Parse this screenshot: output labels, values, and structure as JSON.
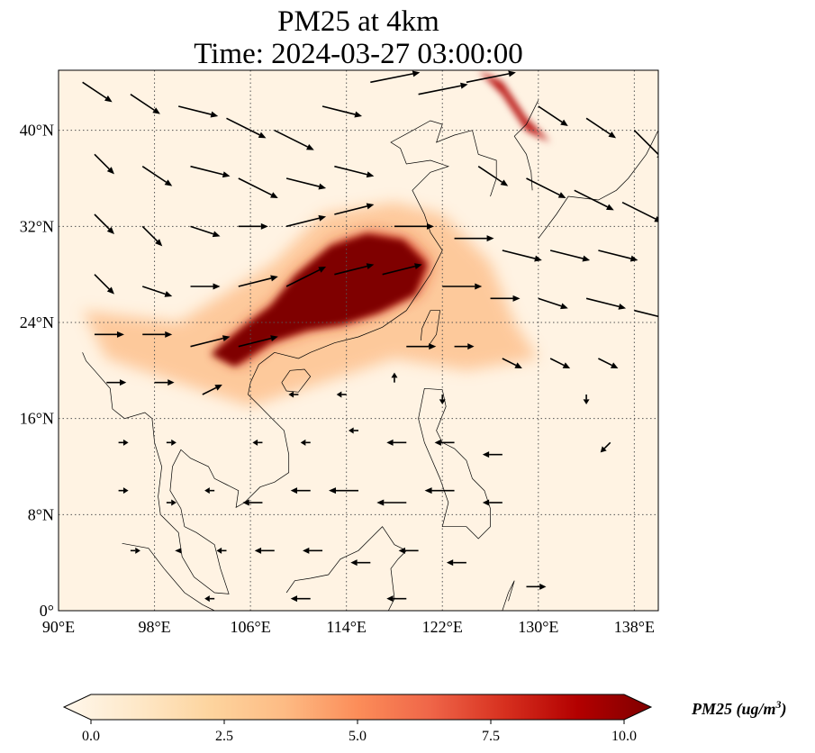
{
  "title": {
    "line1": "PM25 at 4km",
    "line2": "Time: 2024-03-27 03:00:00"
  },
  "map": {
    "projection": "PlateCarree",
    "lon_range": [
      90,
      140
    ],
    "lat_range": [
      0,
      45
    ],
    "lat_ticks": [
      {
        "value": 0,
        "label": "0°"
      },
      {
        "value": 8,
        "label": "8°N"
      },
      {
        "value": 16,
        "label": "16°N"
      },
      {
        "value": 24,
        "label": "24°N"
      },
      {
        "value": 32,
        "label": "32°N"
      },
      {
        "value": 40,
        "label": "40°N"
      }
    ],
    "lon_ticks": [
      {
        "value": 90,
        "label": "90°E"
      },
      {
        "value": 98,
        "label": "98°E"
      },
      {
        "value": 106,
        "label": "106°E"
      },
      {
        "value": 114,
        "label": "114°E"
      },
      {
        "value": 122,
        "label": "122°E"
      },
      {
        "value": 130,
        "label": "130°E"
      },
      {
        "value": 138,
        "label": "138°E"
      }
    ],
    "gridlines": "dotted",
    "plume_core": [
      [
        103,
        21.5
      ],
      [
        106,
        24
      ],
      [
        108,
        25.5
      ],
      [
        110,
        28
      ],
      [
        113,
        30.5
      ],
      [
        116,
        31.5
      ],
      [
        119,
        31
      ],
      [
        121,
        29
      ],
      [
        120,
        26.5
      ],
      [
        117,
        25
      ],
      [
        114,
        24
      ],
      [
        111,
        23.5
      ],
      [
        108,
        22.5
      ],
      [
        105,
        20.5
      ]
    ],
    "plume_halo": [
      [
        92,
        25
      ],
      [
        100,
        24
      ],
      [
        108,
        29
      ],
      [
        112,
        33
      ],
      [
        118,
        34
      ],
      [
        122,
        33
      ],
      [
        126,
        29
      ],
      [
        128,
        24
      ],
      [
        130,
        21
      ],
      [
        124,
        20
      ],
      [
        118,
        21
      ],
      [
        112,
        19
      ],
      [
        106,
        17
      ],
      [
        100,
        19
      ],
      [
        94,
        21
      ]
    ],
    "plume_north": [
      [
        125,
        45
      ],
      [
        127,
        43
      ],
      [
        129,
        40
      ],
      [
        131,
        39
      ],
      [
        129,
        41
      ],
      [
        127,
        44
      ]
    ],
    "wind_vectors": [
      {
        "lon": 92,
        "lat": 44,
        "u": 3,
        "v": -2
      },
      {
        "lon": 96,
        "lat": 43,
        "u": 3,
        "v": -2
      },
      {
        "lon": 100,
        "lat": 42,
        "u": 4,
        "v": -1
      },
      {
        "lon": 104,
        "lat": 41,
        "u": 4,
        "v": -2
      },
      {
        "lon": 108,
        "lat": 40,
        "u": 4,
        "v": -2
      },
      {
        "lon": 112,
        "lat": 42,
        "u": 4,
        "v": -1
      },
      {
        "lon": 116,
        "lat": 44,
        "u": 5,
        "v": 1
      },
      {
        "lon": 120,
        "lat": 43,
        "u": 5,
        "v": 1
      },
      {
        "lon": 124,
        "lat": 44,
        "u": 5,
        "v": 1
      },
      {
        "lon": 130,
        "lat": 42,
        "u": 3,
        "v": -2
      },
      {
        "lon": 134,
        "lat": 41,
        "u": 3,
        "v": -2
      },
      {
        "lon": 138,
        "lat": 40,
        "u": 3,
        "v": -3
      },
      {
        "lon": 93,
        "lat": 38,
        "u": 2,
        "v": -2
      },
      {
        "lon": 97,
        "lat": 37,
        "u": 3,
        "v": -2
      },
      {
        "lon": 101,
        "lat": 37,
        "u": 4,
        "v": -1
      },
      {
        "lon": 105,
        "lat": 36,
        "u": 4,
        "v": -2
      },
      {
        "lon": 109,
        "lat": 36,
        "u": 4,
        "v": -1
      },
      {
        "lon": 113,
        "lat": 37,
        "u": 4,
        "v": -1
      },
      {
        "lon": 125,
        "lat": 37,
        "u": 3,
        "v": -2
      },
      {
        "lon": 129,
        "lat": 36,
        "u": 4,
        "v": -2
      },
      {
        "lon": 133,
        "lat": 35,
        "u": 4,
        "v": -2
      },
      {
        "lon": 137,
        "lat": 34,
        "u": 4,
        "v": -2
      },
      {
        "lon": 93,
        "lat": 33,
        "u": 2,
        "v": -2
      },
      {
        "lon": 97,
        "lat": 32,
        "u": 2,
        "v": -2
      },
      {
        "lon": 101,
        "lat": 32,
        "u": 3,
        "v": -1
      },
      {
        "lon": 105,
        "lat": 32,
        "u": 3,
        "v": 0
      },
      {
        "lon": 109,
        "lat": 32,
        "u": 4,
        "v": 1
      },
      {
        "lon": 113,
        "lat": 33,
        "u": 4,
        "v": 1
      },
      {
        "lon": 118,
        "lat": 32,
        "u": 4,
        "v": 0
      },
      {
        "lon": 123,
        "lat": 31,
        "u": 4,
        "v": 0
      },
      {
        "lon": 127,
        "lat": 30,
        "u": 4,
        "v": -1
      },
      {
        "lon": 131,
        "lat": 30,
        "u": 4,
        "v": -1
      },
      {
        "lon": 135,
        "lat": 30,
        "u": 4,
        "v": -1
      },
      {
        "lon": 93,
        "lat": 28,
        "u": 2,
        "v": -2
      },
      {
        "lon": 97,
        "lat": 27,
        "u": 3,
        "v": -1
      },
      {
        "lon": 101,
        "lat": 27,
        "u": 3,
        "v": 0
      },
      {
        "lon": 105,
        "lat": 27,
        "u": 4,
        "v": 1
      },
      {
        "lon": 109,
        "lat": 27,
        "u": 4,
        "v": 2
      },
      {
        "lon": 113,
        "lat": 28,
        "u": 4,
        "v": 1
      },
      {
        "lon": 117,
        "lat": 28,
        "u": 4,
        "v": 1
      },
      {
        "lon": 122,
        "lat": 27,
        "u": 4,
        "v": 0
      },
      {
        "lon": 126,
        "lat": 26,
        "u": 3,
        "v": 0
      },
      {
        "lon": 130,
        "lat": 26,
        "u": 3,
        "v": -1
      },
      {
        "lon": 134,
        "lat": 26,
        "u": 4,
        "v": -1
      },
      {
        "lon": 138,
        "lat": 25,
        "u": 4,
        "v": -1
      },
      {
        "lon": 93,
        "lat": 23,
        "u": 3,
        "v": 0
      },
      {
        "lon": 97,
        "lat": 23,
        "u": 3,
        "v": 0
      },
      {
        "lon": 101,
        "lat": 22,
        "u": 4,
        "v": 1
      },
      {
        "lon": 105,
        "lat": 22,
        "u": 4,
        "v": 1
      },
      {
        "lon": 119,
        "lat": 22,
        "u": 3,
        "v": 0
      },
      {
        "lon": 123,
        "lat": 22,
        "u": 2,
        "v": 0
      },
      {
        "lon": 127,
        "lat": 21,
        "u": 2,
        "v": -1
      },
      {
        "lon": 131,
        "lat": 21,
        "u": 2,
        "v": -1
      },
      {
        "lon": 135,
        "lat": 21,
        "u": 2,
        "v": -1
      },
      {
        "lon": 94,
        "lat": 19,
        "u": 2,
        "v": 0
      },
      {
        "lon": 98,
        "lat": 19,
        "u": 2,
        "v": 0
      },
      {
        "lon": 102,
        "lat": 18,
        "u": 2,
        "v": 1
      },
      {
        "lon": 110,
        "lat": 18,
        "u": -1,
        "v": 0
      },
      {
        "lon": 114,
        "lat": 18,
        "u": -1,
        "v": 0
      },
      {
        "lon": 118,
        "lat": 19,
        "u": 0,
        "v": 1
      },
      {
        "lon": 122,
        "lat": 18,
        "u": 0,
        "v": -1
      },
      {
        "lon": 134,
        "lat": 18,
        "u": 0,
        "v": -1
      },
      {
        "lon": 95,
        "lat": 14,
        "u": 1,
        "v": 0
      },
      {
        "lon": 99,
        "lat": 14,
        "u": 1,
        "v": 0
      },
      {
        "lon": 107,
        "lat": 14,
        "u": -1,
        "v": 0
      },
      {
        "lon": 111,
        "lat": 14,
        "u": -1,
        "v": 0
      },
      {
        "lon": 115,
        "lat": 15,
        "u": -1,
        "v": 0
      },
      {
        "lon": 119,
        "lat": 14,
        "u": -2,
        "v": 0
      },
      {
        "lon": 123,
        "lat": 14,
        "u": -2,
        "v": 0
      },
      {
        "lon": 127,
        "lat": 13,
        "u": -2,
        "v": 0
      },
      {
        "lon": 136,
        "lat": 14,
        "u": -1,
        "v": -1
      },
      {
        "lon": 95,
        "lat": 10,
        "u": 1,
        "v": 0
      },
      {
        "lon": 99,
        "lat": 9,
        "u": 1,
        "v": 0
      },
      {
        "lon": 103,
        "lat": 10,
        "u": -1,
        "v": 0
      },
      {
        "lon": 107,
        "lat": 9,
        "u": -2,
        "v": 0
      },
      {
        "lon": 111,
        "lat": 10,
        "u": -2,
        "v": 0
      },
      {
        "lon": 115,
        "lat": 10,
        "u": -3,
        "v": 0
      },
      {
        "lon": 119,
        "lat": 9,
        "u": -3,
        "v": 0
      },
      {
        "lon": 123,
        "lat": 10,
        "u": -3,
        "v": 0
      },
      {
        "lon": 127,
        "lat": 9,
        "u": -2,
        "v": 0
      },
      {
        "lon": 96,
        "lat": 5,
        "u": 1,
        "v": 0
      },
      {
        "lon": 100,
        "lat": 5,
        "u": 0,
        "v": 0
      },
      {
        "lon": 104,
        "lat": 5,
        "u": -1,
        "v": 0
      },
      {
        "lon": 108,
        "lat": 5,
        "u": -2,
        "v": 0
      },
      {
        "lon": 112,
        "lat": 5,
        "u": -2,
        "v": 0
      },
      {
        "lon": 116,
        "lat": 4,
        "u": -2,
        "v": 0
      },
      {
        "lon": 120,
        "lat": 5,
        "u": -2,
        "v": 0
      },
      {
        "lon": 124,
        "lat": 4,
        "u": -2,
        "v": 0
      },
      {
        "lon": 103,
        "lat": 1,
        "u": -1,
        "v": 0
      },
      {
        "lon": 111,
        "lat": 1,
        "u": -2,
        "v": 0
      },
      {
        "lon": 119,
        "lat": 1,
        "u": -2,
        "v": 0
      },
      {
        "lon": 129,
        "lat": 2,
        "u": 2,
        "v": 0
      }
    ]
  },
  "colorbar": {
    "label": "PM25 (ug/m",
    "label_sup": "3",
    "label_close": ")",
    "min": 0,
    "max": 10,
    "extend": "both",
    "colormap": [
      "#fff7ec",
      "#fee8c8",
      "#fdd49e",
      "#fdbb84",
      "#fc8d59",
      "#ef6548",
      "#d7301f",
      "#b30000",
      "#7f0000"
    ],
    "ticks": [
      {
        "value": 0,
        "label": "0.0"
      },
      {
        "value": 2.5,
        "label": "2.5"
      },
      {
        "value": 5,
        "label": "5.0"
      },
      {
        "value": 7.5,
        "label": "7.5"
      },
      {
        "value": 10,
        "label": "10.0"
      }
    ]
  }
}
